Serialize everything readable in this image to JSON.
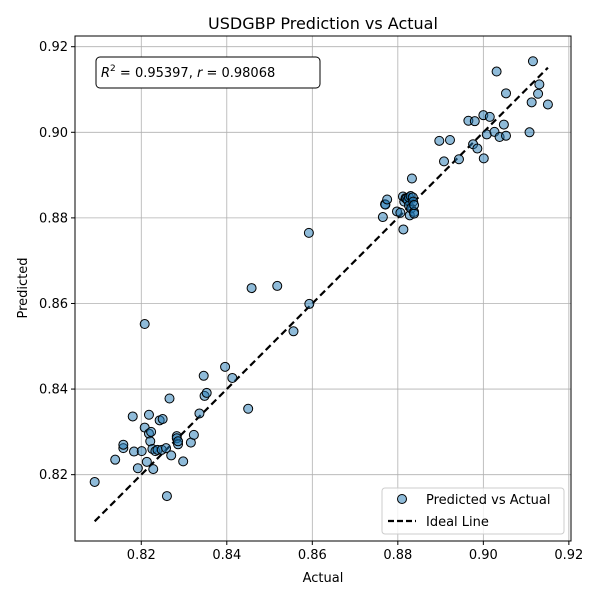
{
  "chart_data": {
    "type": "scatter",
    "title": "USDGBP Prediction vs Actual",
    "xlabel": "Actual",
    "ylabel": "Predicted",
    "xlim": [
      0.8045,
      0.9205
    ],
    "ylim": [
      0.8045,
      0.9225
    ],
    "xticks": [
      "0.82",
      "0.84",
      "0.86",
      "0.88",
      "0.90",
      "0.92"
    ],
    "yticks": [
      "0.82",
      "0.84",
      "0.86",
      "0.88",
      "0.90",
      "0.92"
    ],
    "grid": true,
    "legend_position": "bottom-right",
    "annotation": {
      "r2_symbol": "R",
      "r2_sup": "2",
      "r2_value": " = 0.95397, ",
      "r_symbol": "r",
      "r_value": " = 0.98068"
    },
    "series": [
      {
        "name": "Predicted vs Actual",
        "color": "#1f77b4",
        "points": [
          [
            0.8091,
            0.8183
          ],
          [
            0.8139,
            0.8235
          ],
          [
            0.8158,
            0.8262
          ],
          [
            0.8158,
            0.827
          ],
          [
            0.818,
            0.8336
          ],
          [
            0.8183,
            0.8254
          ],
          [
            0.8192,
            0.8215
          ],
          [
            0.8201,
            0.8255
          ],
          [
            0.8208,
            0.8552
          ],
          [
            0.8208,
            0.831
          ],
          [
            0.8213,
            0.823
          ],
          [
            0.8218,
            0.8296
          ],
          [
            0.8218,
            0.834
          ],
          [
            0.8221,
            0.8278
          ],
          [
            0.8223,
            0.83
          ],
          [
            0.8226,
            0.826
          ],
          [
            0.8228,
            0.8213
          ],
          [
            0.8233,
            0.8255
          ],
          [
            0.8238,
            0.8258
          ],
          [
            0.8243,
            0.8327
          ],
          [
            0.8248,
            0.8258
          ],
          [
            0.825,
            0.833
          ],
          [
            0.8258,
            0.8262
          ],
          [
            0.826,
            0.815
          ],
          [
            0.8266,
            0.8378
          ],
          [
            0.827,
            0.8245
          ],
          [
            0.8283,
            0.829
          ],
          [
            0.8283,
            0.8285
          ],
          [
            0.8286,
            0.8271
          ],
          [
            0.8286,
            0.8278
          ],
          [
            0.8298,
            0.8231
          ],
          [
            0.8316,
            0.8275
          ],
          [
            0.8323,
            0.8293
          ],
          [
            0.8336,
            0.8343
          ],
          [
            0.8346,
            0.8431
          ],
          [
            0.8348,
            0.8384
          ],
          [
            0.8353,
            0.8391
          ],
          [
            0.8396,
            0.8452
          ],
          [
            0.8413,
            0.8426
          ],
          [
            0.845,
            0.8354
          ],
          [
            0.8458,
            0.8636
          ],
          [
            0.8518,
            0.8641
          ],
          [
            0.8556,
            0.8535
          ],
          [
            0.8592,
            0.8765
          ],
          [
            0.8593,
            0.8599
          ],
          [
            0.8765,
            0.8802
          ],
          [
            0.877,
            0.8832
          ],
          [
            0.8771,
            0.8831
          ],
          [
            0.8775,
            0.8843
          ],
          [
            0.8798,
            0.8815
          ],
          [
            0.8806,
            0.8812
          ],
          [
            0.8812,
            0.885
          ],
          [
            0.8813,
            0.8773
          ],
          [
            0.8815,
            0.8838
          ],
          [
            0.8818,
            0.8846
          ],
          [
            0.882,
            0.8845
          ],
          [
            0.8823,
            0.8841
          ],
          [
            0.8826,
            0.8848
          ],
          [
            0.8826,
            0.8829
          ],
          [
            0.8828,
            0.8806
          ],
          [
            0.883,
            0.8851
          ],
          [
            0.8831,
            0.8822
          ],
          [
            0.8833,
            0.8892
          ],
          [
            0.8835,
            0.8848
          ],
          [
            0.8836,
            0.8838
          ],
          [
            0.8838,
            0.8814
          ],
          [
            0.8838,
            0.881
          ],
          [
            0.8838,
            0.883
          ],
          [
            0.8897,
            0.898
          ],
          [
            0.8908,
            0.8932
          ],
          [
            0.8922,
            0.8982
          ],
          [
            0.8943,
            0.8937
          ],
          [
            0.8965,
            0.9027
          ],
          [
            0.8976,
            0.8972
          ],
          [
            0.898,
            0.9026
          ],
          [
            0.8986,
            0.8962
          ],
          [
            0.9,
            0.904
          ],
          [
            0.9001,
            0.8939
          ],
          [
            0.9008,
            0.8995
          ],
          [
            0.9015,
            0.9036
          ],
          [
            0.9026,
            0.9001
          ],
          [
            0.9031,
            0.9142
          ],
          [
            0.9038,
            0.8989
          ],
          [
            0.9048,
            0.9018
          ],
          [
            0.9053,
            0.8992
          ],
          [
            0.9053,
            0.9091
          ],
          [
            0.9108,
            0.9
          ],
          [
            0.9113,
            0.907
          ],
          [
            0.9116,
            0.9166
          ],
          [
            0.9128,
            0.909
          ],
          [
            0.9131,
            0.9112
          ],
          [
            0.9151,
            0.9065
          ]
        ]
      },
      {
        "name": "Ideal Line",
        "color": "#000000",
        "line": [
          [
            0.8091,
            0.8091
          ],
          [
            0.9151,
            0.9151
          ]
        ]
      }
    ]
  }
}
